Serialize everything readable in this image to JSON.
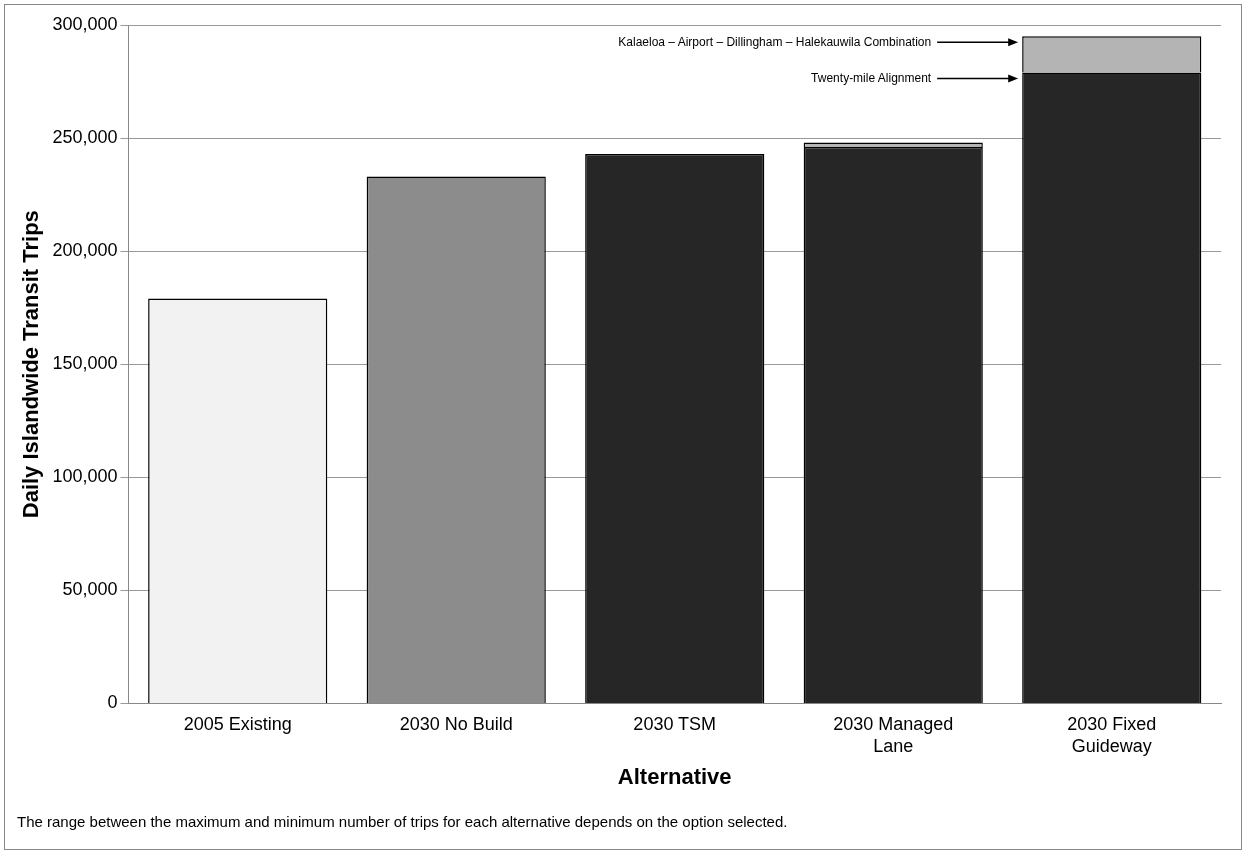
{
  "chart_data": {
    "type": "bar",
    "stacked": true,
    "xlabel": "Alternative",
    "ylabel": "Daily Islandwide Transit Trips",
    "categories": [
      "2005 Existing",
      "2030 No Build",
      "2030 TSM",
      "2030 Managed Lane",
      "2030 Fixed Guideway"
    ],
    "series": [
      {
        "colors": [
          "#f2f2f2",
          "#8c8c8c",
          "#262626",
          "#262626",
          "#262626"
        ],
        "values": [
          179000,
          233000,
          243000,
          246000,
          279000
        ]
      },
      {
        "color": "#b4b4b4",
        "values": [
          null,
          null,
          null,
          2000,
          16000
        ]
      }
    ],
    "ylim": [
      0,
      300000
    ],
    "yticks": [
      {
        "value": 0,
        "label": "0"
      },
      {
        "value": 50000,
        "label": "50,000"
      },
      {
        "value": 100000,
        "label": "100,000"
      },
      {
        "value": 150000,
        "label": "150,000"
      },
      {
        "value": 200000,
        "label": "200,000"
      },
      {
        "value": 250000,
        "label": "250,000"
      },
      {
        "value": 300000,
        "label": "300,000"
      }
    ],
    "grid": "y",
    "legend": false,
    "annotations": [
      "Kalaeloa – Airport – Dillingham – Halekauwila Combination",
      "Twenty-mile Alignment",
      "The range between the maximum and minimum number of trips for each alternative depends on the option selected."
    ]
  }
}
